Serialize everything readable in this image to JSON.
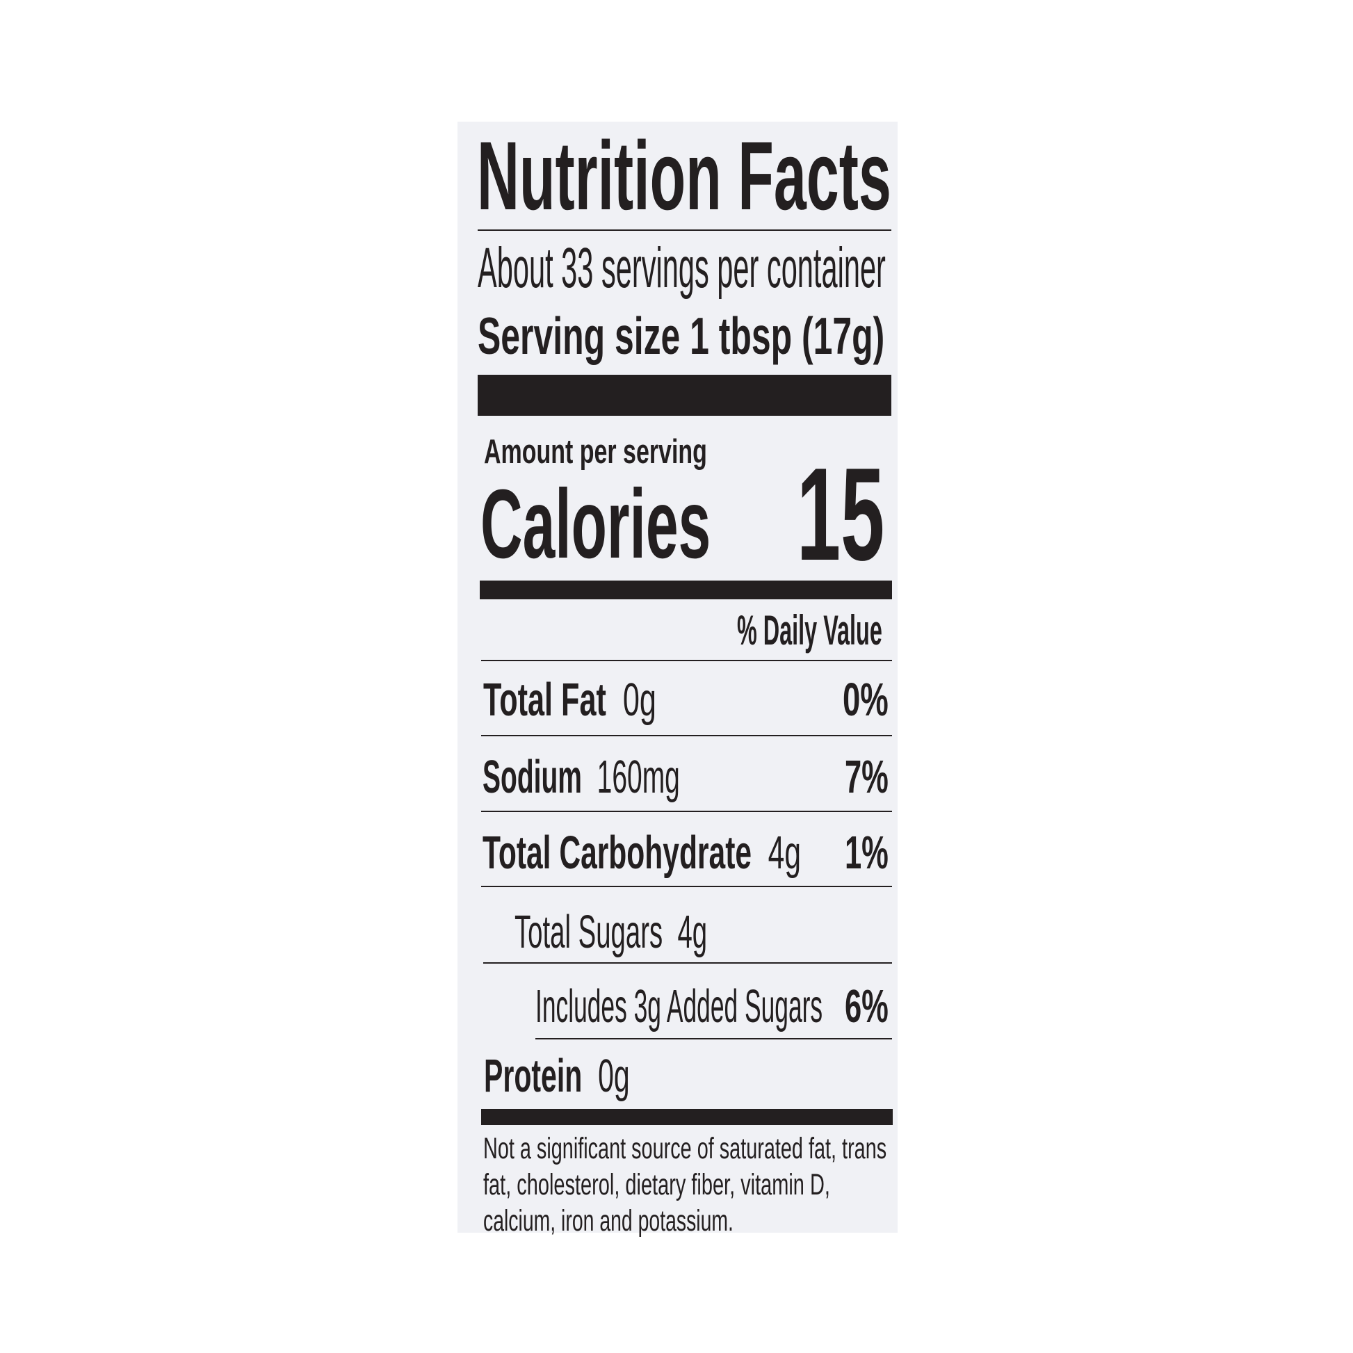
{
  "label": {
    "title": "Nutrition Facts",
    "servings_per_container": "About 33 servings per container",
    "serving_size_label": "Serving size",
    "serving_size_value": "1 tbsp (17g)",
    "amount_per_serving": "Amount per serving",
    "calories_label": "Calories",
    "calories_value": "15",
    "daily_value_header": "% Daily Value",
    "nutrients": [
      {
        "name": "Total Fat",
        "amount": "0g",
        "dv": "0%"
      },
      {
        "name": "Sodium",
        "amount": "160mg",
        "dv": "7%"
      },
      {
        "name": "Total Carbohydrate",
        "amount": "4g",
        "dv": "1%"
      },
      {
        "name": "Total Sugars",
        "amount": "4g",
        "dv": ""
      },
      {
        "name": "Includes 3g Added Sugars",
        "amount": "",
        "dv": "6%"
      },
      {
        "name": "Protein",
        "amount": "0g",
        "dv": ""
      }
    ],
    "footnote_lines": [
      "Not a significant source of saturated fat, trans",
      "fat, cholesterol, dietary fiber, vitamin D,",
      "calcium, iron and potassium."
    ]
  },
  "colors": {
    "ink": "#231f20",
    "panel": "#f0f1f5"
  }
}
